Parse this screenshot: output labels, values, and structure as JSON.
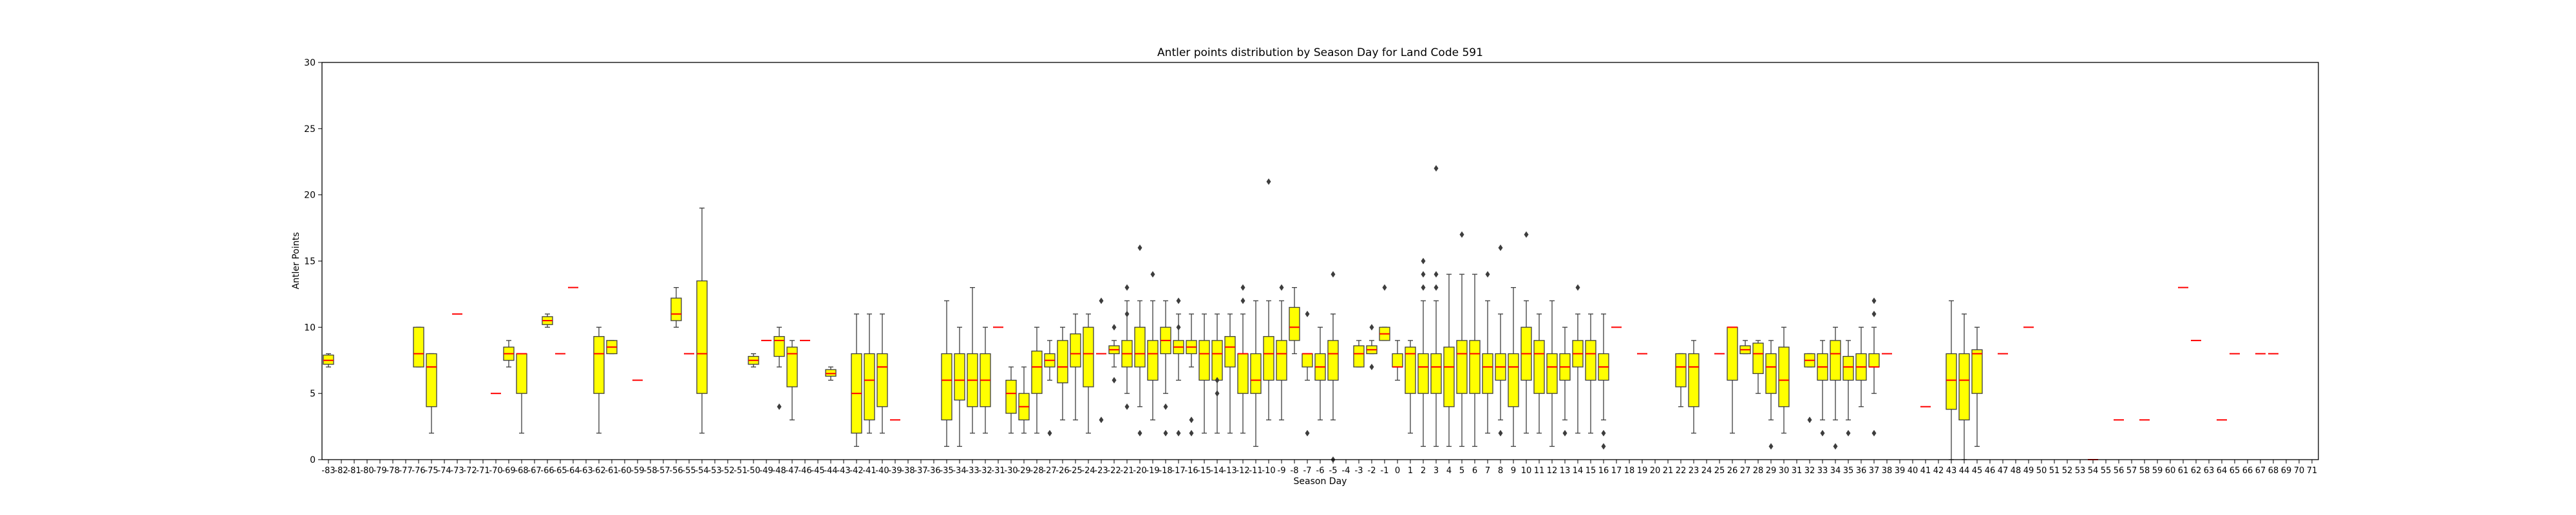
{
  "chart_data": {
    "type": "box",
    "title": "Antler points distribution by Season Day for Land Code 591",
    "xlabel": "Season Day",
    "ylabel": "Antler Points",
    "ylim": [
      0,
      30
    ],
    "yticks": [
      0,
      5,
      10,
      15,
      20,
      25,
      30
    ],
    "categories": [
      -83,
      -82,
      -81,
      -80,
      -79,
      -78,
      -77,
      -76,
      -75,
      -74,
      -73,
      -72,
      -71,
      -70,
      -69,
      -68,
      -67,
      -66,
      -65,
      -64,
      -63,
      -62,
      -61,
      -60,
      -59,
      -58,
      -57,
      -56,
      -55,
      -54,
      -53,
      -52,
      -51,
      -50,
      -49,
      -48,
      -47,
      -46,
      -45,
      -44,
      -43,
      -42,
      -41,
      -40,
      -39,
      -38,
      -37,
      -36,
      -35,
      -34,
      -33,
      -32,
      -31,
      -30,
      -29,
      -28,
      -27,
      -26,
      -25,
      -24,
      -23,
      -22,
      -21,
      -20,
      -19,
      -18,
      -17,
      -16,
      -15,
      -14,
      -13,
      -12,
      -11,
      -10,
      -9,
      -8,
      -7,
      -6,
      -5,
      -4,
      -3,
      -2,
      -1,
      0,
      1,
      2,
      3,
      4,
      5,
      6,
      7,
      8,
      9,
      10,
      11,
      12,
      13,
      14,
      15,
      16,
      17,
      18,
      19,
      20,
      21,
      22,
      23,
      24,
      25,
      26,
      27,
      28,
      29,
      30,
      31,
      32,
      33,
      34,
      35,
      36,
      37,
      38,
      39,
      40,
      41,
      42,
      43,
      44,
      45,
      46,
      47,
      48,
      49,
      50,
      51,
      52,
      53,
      54,
      55,
      56,
      57,
      58,
      59,
      60,
      61,
      62,
      63,
      64,
      65,
      66,
      67,
      68,
      69,
      70,
      71
    ],
    "boxes": [
      {
        "day": -83,
        "q1": 7.2,
        "med": 7.5,
        "q3": 7.9,
        "wlo": 7.0,
        "whi": 8.0,
        "out": []
      },
      {
        "day": -76,
        "q1": 7,
        "med": 8,
        "q3": 10,
        "wlo": 7,
        "whi": 10,
        "out": []
      },
      {
        "day": -75,
        "q1": 4,
        "med": 7,
        "q3": 8,
        "wlo": 2,
        "whi": 8,
        "out": []
      },
      {
        "day": -73,
        "q1": 11,
        "med": 11,
        "q3": 11,
        "wlo": 11,
        "whi": 11,
        "out": []
      },
      {
        "day": -70,
        "q1": 5,
        "med": 5,
        "q3": 5,
        "wlo": 5,
        "whi": 5,
        "out": []
      },
      {
        "day": -69,
        "q1": 7.5,
        "med": 8,
        "q3": 8.5,
        "wlo": 7,
        "whi": 9,
        "out": []
      },
      {
        "day": -68,
        "q1": 5,
        "med": 8,
        "q3": 8,
        "wlo": 2,
        "whi": 8,
        "out": []
      },
      {
        "day": -66,
        "q1": 10.2,
        "med": 10.5,
        "q3": 10.8,
        "wlo": 10,
        "whi": 11,
        "out": []
      },
      {
        "day": -65,
        "q1": 8,
        "med": 8,
        "q3": 8,
        "wlo": 8,
        "whi": 8,
        "out": []
      },
      {
        "day": -64,
        "q1": 13,
        "med": 13,
        "q3": 13,
        "wlo": 13,
        "whi": 13,
        "out": []
      },
      {
        "day": -62,
        "q1": 5,
        "med": 8,
        "q3": 9.3,
        "wlo": 2,
        "whi": 10,
        "out": []
      },
      {
        "day": -61,
        "q1": 8,
        "med": 8.5,
        "q3": 9,
        "wlo": 8,
        "whi": 9,
        "out": []
      },
      {
        "day": -59,
        "q1": 6,
        "med": 6,
        "q3": 6,
        "wlo": 6,
        "whi": 6,
        "out": []
      },
      {
        "day": -56,
        "q1": 10.5,
        "med": 11,
        "q3": 12.2,
        "wlo": 10,
        "whi": 13,
        "out": []
      },
      {
        "day": -55,
        "q1": 8,
        "med": 8,
        "q3": 8,
        "wlo": 8,
        "whi": 8,
        "out": []
      },
      {
        "day": -54,
        "q1": 5,
        "med": 8,
        "q3": 13.5,
        "wlo": 2,
        "whi": 19,
        "out": []
      },
      {
        "day": -50,
        "q1": 7.2,
        "med": 7.5,
        "q3": 7.8,
        "wlo": 7,
        "whi": 8,
        "out": []
      },
      {
        "day": -49,
        "q1": 9,
        "med": 9,
        "q3": 9,
        "wlo": 9,
        "whi": 9,
        "out": []
      },
      {
        "day": -48,
        "q1": 7.8,
        "med": 9,
        "q3": 9.3,
        "wlo": 7,
        "whi": 10,
        "out": [
          4
        ]
      },
      {
        "day": -47,
        "q1": 5.5,
        "med": 8,
        "q3": 8.5,
        "wlo": 3,
        "whi": 9,
        "out": []
      },
      {
        "day": -46,
        "q1": 9,
        "med": 9,
        "q3": 9,
        "wlo": 9,
        "whi": 9,
        "out": []
      },
      {
        "day": -44,
        "q1": 6.3,
        "med": 6.5,
        "q3": 6.8,
        "wlo": 6,
        "whi": 7,
        "out": []
      },
      {
        "day": -42,
        "q1": 2,
        "med": 5,
        "q3": 8,
        "wlo": 1,
        "whi": 11,
        "out": []
      },
      {
        "day": -41,
        "q1": 3,
        "med": 6,
        "q3": 8,
        "wlo": 2,
        "whi": 11,
        "out": []
      },
      {
        "day": -40,
        "q1": 4,
        "med": 7,
        "q3": 8,
        "wlo": 2,
        "whi": 11,
        "out": []
      },
      {
        "day": -39,
        "q1": 3,
        "med": 3,
        "q3": 3,
        "wlo": 3,
        "whi": 3,
        "out": []
      },
      {
        "day": -35,
        "q1": 3,
        "med": 6,
        "q3": 8,
        "wlo": 1,
        "whi": 12,
        "out": []
      },
      {
        "day": -34,
        "q1": 4.5,
        "med": 6,
        "q3": 8,
        "wlo": 1,
        "whi": 10,
        "out": []
      },
      {
        "day": -33,
        "q1": 4,
        "med": 6,
        "q3": 8,
        "wlo": 2,
        "whi": 13,
        "out": []
      },
      {
        "day": -32,
        "q1": 4,
        "med": 6,
        "q3": 8,
        "wlo": 2,
        "whi": 10,
        "out": []
      },
      {
        "day": -31,
        "q1": 10,
        "med": 10,
        "q3": 10,
        "wlo": 10,
        "whi": 10,
        "out": []
      },
      {
        "day": -30,
        "q1": 3.5,
        "med": 5,
        "q3": 6,
        "wlo": 2,
        "whi": 7,
        "out": []
      },
      {
        "day": -29,
        "q1": 3,
        "med": 4,
        "q3": 5,
        "wlo": 2,
        "whi": 7,
        "out": []
      },
      {
        "day": -28,
        "q1": 5,
        "med": 7,
        "q3": 8.2,
        "wlo": 2,
        "whi": 10,
        "out": []
      },
      {
        "day": -27,
        "q1": 7,
        "med": 7.5,
        "q3": 8,
        "wlo": 6,
        "whi": 9,
        "out": [
          2
        ]
      },
      {
        "day": -26,
        "q1": 5.8,
        "med": 7,
        "q3": 9,
        "wlo": 3,
        "whi": 10,
        "out": []
      },
      {
        "day": -25,
        "q1": 7,
        "med": 8,
        "q3": 9.5,
        "wlo": 3,
        "whi": 11,
        "out": []
      },
      {
        "day": -24,
        "q1": 5.5,
        "med": 8,
        "q3": 10,
        "wlo": 2,
        "whi": 11,
        "out": []
      },
      {
        "day": -23,
        "q1": 8,
        "med": 8,
        "q3": 8,
        "wlo": 8,
        "whi": 8,
        "out": [
          3,
          12
        ]
      },
      {
        "day": -22,
        "q1": 8,
        "med": 8.3,
        "q3": 8.6,
        "wlo": 7,
        "whi": 9,
        "out": [
          6,
          10
        ]
      },
      {
        "day": -21,
        "q1": 7,
        "med": 8,
        "q3": 9,
        "wlo": 5,
        "whi": 12,
        "out": [
          4,
          11,
          13
        ]
      },
      {
        "day": -20,
        "q1": 7,
        "med": 8,
        "q3": 10,
        "wlo": 4,
        "whi": 12,
        "out": [
          2,
          16
        ]
      },
      {
        "day": -19,
        "q1": 6,
        "med": 8,
        "q3": 9,
        "wlo": 3,
        "whi": 12,
        "out": [
          14
        ]
      },
      {
        "day": -18,
        "q1": 8,
        "med": 9,
        "q3": 10,
        "wlo": 5,
        "whi": 12,
        "out": [
          2,
          4
        ]
      },
      {
        "day": -17,
        "q1": 8,
        "med": 8.5,
        "q3": 9,
        "wlo": 6,
        "whi": 11,
        "out": [
          2,
          10,
          12
        ]
      },
      {
        "day": -16,
        "q1": 8,
        "med": 8.5,
        "q3": 9,
        "wlo": 7,
        "whi": 11,
        "out": [
          2,
          3
        ]
      },
      {
        "day": -15,
        "q1": 6,
        "med": 8,
        "q3": 9,
        "wlo": 2,
        "whi": 11,
        "out": []
      },
      {
        "day": -14,
        "q1": 6,
        "med": 8,
        "q3": 9,
        "wlo": 2,
        "whi": 11,
        "out": [
          5,
          6
        ]
      },
      {
        "day": -13,
        "q1": 7,
        "med": 8.5,
        "q3": 9.3,
        "wlo": 2,
        "whi": 11,
        "out": []
      },
      {
        "day": -12,
        "q1": 5,
        "med": 8,
        "q3": 8,
        "wlo": 2,
        "whi": 11,
        "out": [
          12,
          13
        ]
      },
      {
        "day": -11,
        "q1": 5,
        "med": 6,
        "q3": 8,
        "wlo": 1,
        "whi": 12,
        "out": []
      },
      {
        "day": -10,
        "q1": 6,
        "med": 8,
        "q3": 9.3,
        "wlo": 3,
        "whi": 12,
        "out": [
          21
        ]
      },
      {
        "day": -9,
        "q1": 6,
        "med": 8,
        "q3": 9,
        "wlo": 3,
        "whi": 12,
        "out": [
          13
        ]
      },
      {
        "day": -8,
        "q1": 9,
        "med": 10,
        "q3": 11.5,
        "wlo": 8,
        "whi": 13,
        "out": []
      },
      {
        "day": -7,
        "q1": 7,
        "med": 8,
        "q3": 8,
        "wlo": 6,
        "whi": 8,
        "out": [
          2,
          11
        ]
      },
      {
        "day": -6,
        "q1": 6,
        "med": 7,
        "q3": 8,
        "wlo": 3,
        "whi": 10,
        "out": []
      },
      {
        "day": -5,
        "q1": 6,
        "med": 8,
        "q3": 9,
        "wlo": 3,
        "whi": 11,
        "out": [
          0,
          14
        ]
      },
      {
        "day": -3,
        "q1": 7,
        "med": 8,
        "q3": 8.6,
        "wlo": 7,
        "whi": 9,
        "out": []
      },
      {
        "day": -2,
        "q1": 8,
        "med": 8.3,
        "q3": 8.6,
        "wlo": 8,
        "whi": 9,
        "out": [
          7,
          10
        ]
      },
      {
        "day": -1,
        "q1": 9,
        "med": 9.5,
        "q3": 10,
        "wlo": 9,
        "whi": 10,
        "out": [
          13
        ]
      },
      {
        "day": 0,
        "q1": 7,
        "med": 7,
        "q3": 8,
        "wlo": 6,
        "whi": 9,
        "out": []
      },
      {
        "day": 1,
        "q1": 5,
        "med": 8,
        "q3": 8.5,
        "wlo": 2,
        "whi": 9,
        "out": []
      },
      {
        "day": 2,
        "q1": 5,
        "med": 7,
        "q3": 8,
        "wlo": 1,
        "whi": 12,
        "out": [
          13,
          14,
          15
        ]
      },
      {
        "day": 3,
        "q1": 5,
        "med": 7,
        "q3": 8,
        "wlo": 1,
        "whi": 12,
        "out": [
          13,
          14,
          22
        ]
      },
      {
        "day": 4,
        "q1": 4,
        "med": 7,
        "q3": 8.5,
        "wlo": 1,
        "whi": 14,
        "out": []
      },
      {
        "day": 5,
        "q1": 5,
        "med": 8,
        "q3": 9,
        "wlo": 1,
        "whi": 14,
        "out": [
          17
        ]
      },
      {
        "day": 6,
        "q1": 5,
        "med": 8,
        "q3": 9,
        "wlo": 1,
        "whi": 14,
        "out": []
      },
      {
        "day": 7,
        "q1": 5,
        "med": 7,
        "q3": 8,
        "wlo": 2,
        "whi": 12,
        "out": [
          14
        ]
      },
      {
        "day": 8,
        "q1": 6,
        "med": 7,
        "q3": 8,
        "wlo": 3,
        "whi": 11,
        "out": [
          2,
          16
        ]
      },
      {
        "day": 9,
        "q1": 4,
        "med": 7,
        "q3": 8,
        "wlo": 1,
        "whi": 13,
        "out": []
      },
      {
        "day": 10,
        "q1": 6,
        "med": 8,
        "q3": 10,
        "wlo": 2,
        "whi": 12,
        "out": [
          17
        ]
      },
      {
        "day": 11,
        "q1": 5,
        "med": 8,
        "q3": 9,
        "wlo": 2,
        "whi": 11,
        "out": []
      },
      {
        "day": 12,
        "q1": 5,
        "med": 7,
        "q3": 8,
        "wlo": 1,
        "whi": 12,
        "out": []
      },
      {
        "day": 13,
        "q1": 6,
        "med": 7,
        "q3": 8,
        "wlo": 3,
        "whi": 10,
        "out": [
          2
        ]
      },
      {
        "day": 14,
        "q1": 7,
        "med": 8,
        "q3": 9,
        "wlo": 2,
        "whi": 11,
        "out": [
          13
        ]
      },
      {
        "day": 15,
        "q1": 6,
        "med": 8,
        "q3": 9,
        "wlo": 2,
        "whi": 11,
        "out": []
      },
      {
        "day": 16,
        "q1": 6,
        "med": 7,
        "q3": 8,
        "wlo": 3,
        "whi": 11,
        "out": [
          1,
          2
        ]
      },
      {
        "day": 17,
        "q1": 10,
        "med": 10,
        "q3": 10,
        "wlo": 10,
        "whi": 10,
        "out": []
      },
      {
        "day": 19,
        "q1": 8,
        "med": 8,
        "q3": 8,
        "wlo": 8,
        "whi": 8,
        "out": []
      },
      {
        "day": 22,
        "q1": 5.5,
        "med": 7,
        "q3": 8,
        "wlo": 4,
        "whi": 8,
        "out": []
      },
      {
        "day": 23,
        "q1": 4,
        "med": 7,
        "q3": 8,
        "wlo": 2,
        "whi": 9,
        "out": []
      },
      {
        "day": 25,
        "q1": 8,
        "med": 8,
        "q3": 8,
        "wlo": 8,
        "whi": 8,
        "out": []
      },
      {
        "day": 26,
        "q1": 6,
        "med": 10,
        "q3": 10,
        "wlo": 2,
        "whi": 10,
        "out": []
      },
      {
        "day": 27,
        "q1": 8,
        "med": 8.3,
        "q3": 8.6,
        "wlo": 8,
        "whi": 9,
        "out": []
      },
      {
        "day": 28,
        "q1": 6.5,
        "med": 8,
        "q3": 8.8,
        "wlo": 5,
        "whi": 9,
        "out": []
      },
      {
        "day": 29,
        "q1": 5,
        "med": 7,
        "q3": 8,
        "wlo": 3,
        "whi": 9,
        "out": [
          1
        ]
      },
      {
        "day": 30,
        "q1": 4,
        "med": 6,
        "q3": 8.5,
        "wlo": 2,
        "whi": 10,
        "out": []
      },
      {
        "day": 32,
        "q1": 7,
        "med": 7.5,
        "q3": 8,
        "wlo": 7,
        "whi": 8,
        "out": [
          3
        ]
      },
      {
        "day": 33,
        "q1": 6,
        "med": 7,
        "q3": 8,
        "wlo": 3,
        "whi": 9,
        "out": [
          2
        ]
      },
      {
        "day": 34,
        "q1": 6,
        "med": 8,
        "q3": 9,
        "wlo": 3,
        "whi": 10,
        "out": [
          1
        ]
      },
      {
        "day": 35,
        "q1": 6,
        "med": 7,
        "q3": 7.8,
        "wlo": 3,
        "whi": 9,
        "out": [
          2
        ]
      },
      {
        "day": 36,
        "q1": 6,
        "med": 7,
        "q3": 8,
        "wlo": 4,
        "whi": 10,
        "out": []
      },
      {
        "day": 37,
        "q1": 7,
        "med": 7,
        "q3": 8,
        "wlo": 5,
        "whi": 10,
        "out": [
          2,
          11,
          12
        ]
      },
      {
        "day": 38,
        "q1": 8,
        "med": 8,
        "q3": 8,
        "wlo": 8,
        "whi": 8,
        "out": []
      },
      {
        "day": 41,
        "q1": 4,
        "med": 4,
        "q3": 4,
        "wlo": 4,
        "whi": 4,
        "out": []
      },
      {
        "day": 43,
        "q1": 3.8,
        "med": 6,
        "q3": 8,
        "wlo": 0,
        "whi": 12,
        "out": []
      },
      {
        "day": 44,
        "q1": 3,
        "med": 6,
        "q3": 8,
        "wlo": 0,
        "whi": 11,
        "out": []
      },
      {
        "day": 45,
        "q1": 5,
        "med": 8,
        "q3": 8.3,
        "wlo": 1,
        "whi": 10,
        "out": []
      },
      {
        "day": 47,
        "q1": 8,
        "med": 8,
        "q3": 8,
        "wlo": 8,
        "whi": 8,
        "out": []
      },
      {
        "day": 49,
        "q1": 10,
        "med": 10,
        "q3": 10,
        "wlo": 10,
        "whi": 10,
        "out": []
      },
      {
        "day": 54,
        "q1": 0,
        "med": 0,
        "q3": 0,
        "wlo": 0,
        "whi": 0,
        "out": []
      },
      {
        "day": 56,
        "q1": 3,
        "med": 3,
        "q3": 3,
        "wlo": 3,
        "whi": 3,
        "out": []
      },
      {
        "day": 58,
        "q1": 3,
        "med": 3,
        "q3": 3,
        "wlo": 3,
        "whi": 3,
        "out": []
      },
      {
        "day": 61,
        "q1": 13,
        "med": 13,
        "q3": 13,
        "wlo": 13,
        "whi": 13,
        "out": []
      },
      {
        "day": 62,
        "q1": 9,
        "med": 9,
        "q3": 9,
        "wlo": 9,
        "whi": 9,
        "out": []
      },
      {
        "day": 64,
        "q1": 3,
        "med": 3,
        "q3": 3,
        "wlo": 3,
        "whi": 3,
        "out": []
      },
      {
        "day": 65,
        "q1": 8,
        "med": 8,
        "q3": 8,
        "wlo": 8,
        "whi": 8,
        "out": []
      },
      {
        "day": 67,
        "q1": 8,
        "med": 8,
        "q3": 8,
        "wlo": 8,
        "whi": 8,
        "out": []
      },
      {
        "day": 68,
        "q1": 8,
        "med": 8,
        "q3": 8,
        "wlo": 8,
        "whi": 8,
        "out": []
      }
    ],
    "colors": {
      "box": "#ffff00",
      "median": "#ff0000",
      "edge": "#3d3d3d",
      "axis": "#000000"
    },
    "grid": false,
    "legend": "none"
  }
}
